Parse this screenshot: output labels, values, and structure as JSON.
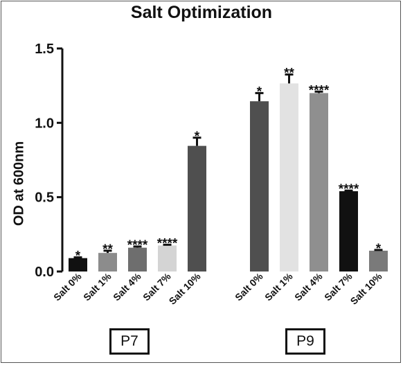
{
  "chart_data": {
    "type": "bar",
    "title": "Salt Optimization",
    "ylabel": "OD at 600nm",
    "ylim": [
      0,
      1.5
    ],
    "yticks": [
      "0.0",
      "0.5",
      "1.0",
      "1.5"
    ],
    "grid": false,
    "groups": [
      {
        "name": "P7",
        "bars": [
          {
            "label": "Salt 0%",
            "value": 0.09,
            "error": 0.005,
            "sig": "*",
            "color": "#111111"
          },
          {
            "label": "Salt 1%",
            "value": 0.125,
            "error": 0.015,
            "sig": "**",
            "color": "#8c8c8c"
          },
          {
            "label": "Salt 4%",
            "value": 0.16,
            "error": 0.008,
            "sig": "****",
            "color": "#6e6e6e"
          },
          {
            "label": "Salt 7%",
            "value": 0.175,
            "error": 0.005,
            "sig": "****",
            "color": "#d4d4d4"
          },
          {
            "label": "Salt 10%",
            "value": 0.845,
            "error": 0.055,
            "sig": "*",
            "color": "#4f4f4f"
          }
        ]
      },
      {
        "name": "P9",
        "bars": [
          {
            "label": "Salt 0%",
            "value": 1.145,
            "error": 0.055,
            "sig": "*",
            "color": "#4f4f4f"
          },
          {
            "label": "Salt 1%",
            "value": 1.265,
            "error": 0.06,
            "sig": "**",
            "color": "#e2e2e2"
          },
          {
            "label": "Salt 4%",
            "value": 1.2,
            "error": 0.01,
            "sig": "****",
            "color": "#8f8f8f"
          },
          {
            "label": "Salt 7%",
            "value": 0.54,
            "error": 0.004,
            "sig": "****",
            "color": "#111111"
          },
          {
            "label": "Salt 10%",
            "value": 0.14,
            "error": 0.005,
            "sig": "*",
            "color": "#7a7a7a"
          }
        ]
      }
    ]
  }
}
